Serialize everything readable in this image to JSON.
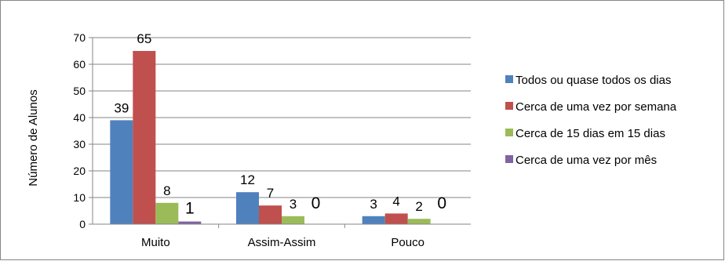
{
  "chart_data": {
    "type": "bar",
    "title": "",
    "xlabel": "",
    "ylabel": "Número de Alunos",
    "ylim": [
      0,
      70
    ],
    "yticks": [
      "0",
      "10",
      "20",
      "30",
      "40",
      "50",
      "60",
      "70"
    ],
    "grid": true,
    "legend_position": "right",
    "categories": [
      "Muito",
      "Assim-Assim",
      "Pouco"
    ],
    "series": [
      {
        "name": "Todos ou quase todos os dias",
        "values": [
          39,
          12,
          3
        ],
        "labels": [
          "39",
          "12",
          "3"
        ],
        "color": "#4f81bd"
      },
      {
        "name": "Cerca de uma vez por semana",
        "values": [
          65,
          7,
          4
        ],
        "labels": [
          "65",
          "7",
          "4"
        ],
        "color": "#c0504d"
      },
      {
        "name": "Cerca de 15 dias em 15 dias",
        "values": [
          8,
          3,
          2
        ],
        "labels": [
          "8",
          "3",
          "2"
        ],
        "color": "#9bbb59"
      },
      {
        "name": "Cerca de uma vez por mês",
        "values": [
          1,
          0,
          0
        ],
        "labels": [
          "1",
          "0",
          "0"
        ],
        "color": "#8064a2"
      }
    ]
  }
}
